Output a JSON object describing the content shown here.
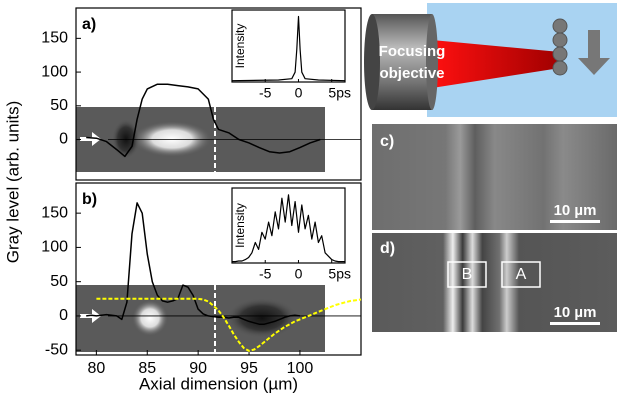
{
  "chart_data": [
    {
      "type": "line",
      "panel_label": "a)",
      "ylabel": "Gray level (arb. units)",
      "x": [
        79,
        80,
        81,
        82,
        82.8,
        83.5,
        84,
        84.5,
        85,
        86,
        87,
        88,
        89,
        90,
        91,
        91.5,
        92,
        93,
        94,
        95,
        96,
        97,
        98,
        99,
        100,
        101,
        102
      ],
      "series": [
        {
          "color": "#000000",
          "values": [
            3,
            2,
            -3,
            -15,
            -25,
            -10,
            30,
            60,
            75,
            82,
            82,
            80,
            78,
            75,
            60,
            30,
            15,
            10,
            0,
            -5,
            -12,
            -18,
            -20,
            -18,
            -12,
            -5,
            0
          ]
        }
      ],
      "xlim": [
        78,
        106
      ],
      "ylim": [
        -60,
        195
      ],
      "yticks": [
        0,
        50,
        100,
        150
      ]
    },
    {
      "type": "line",
      "panel_label": "b)",
      "xlabel": "Axial dimension (µm)",
      "x": [
        79,
        79.5,
        80,
        80.5,
        81,
        81.5,
        82,
        82.5,
        83,
        83.5,
        84,
        84.5,
        85,
        85.5,
        86,
        86.5,
        87,
        87.5,
        88,
        88.5,
        89,
        89.5,
        90,
        90.5,
        91,
        91.5,
        92,
        92.5,
        93,
        93.5,
        94,
        94.5,
        95,
        95.5,
        96,
        96.5,
        97,
        97.5,
        98,
        98.5,
        99,
        99.5,
        100,
        100.5,
        101,
        101.5,
        102,
        102.5,
        103,
        103.5,
        104,
        104.5,
        105,
        105.5,
        106
      ],
      "series": [
        {
          "color": "#000000",
          "values": [
            0,
            1,
            0,
            1,
            2,
            1,
            0,
            -5,
            20,
            120,
            165,
            150,
            90,
            50,
            30,
            22,
            20,
            22,
            25,
            45,
            42,
            30,
            10,
            3,
            0,
            -1,
            -2,
            -2,
            -3,
            -2,
            -2,
            -5,
            -8,
            -10,
            -12,
            -12,
            -10,
            -8,
            -5,
            -2,
            0,
            1,
            0,
            null,
            null,
            null,
            null,
            null,
            null,
            null,
            null,
            null,
            null,
            null,
            null
          ]
        },
        {
          "color": "#ffff00",
          "line_style": "dashed",
          "values": [
            null,
            null,
            25,
            25,
            25,
            25,
            25,
            25,
            25,
            25,
            25,
            25,
            25,
            25,
            25,
            25,
            25,
            25,
            25,
            25,
            25,
            25,
            25,
            24,
            21,
            15,
            8,
            -2,
            -14,
            -27,
            -38,
            -47,
            -51,
            -49,
            -44,
            -38,
            -32,
            -26,
            -21,
            -16,
            -12,
            -8,
            -5,
            -2,
            1,
            4,
            7,
            10,
            13,
            16,
            18,
            20,
            22,
            23,
            24
          ]
        }
      ],
      "xlim": [
        78,
        106
      ],
      "xticks": [
        80,
        85,
        90,
        95,
        100
      ],
      "ylim": [
        -57,
        194
      ],
      "yticks": [
        -50,
        0,
        50,
        100,
        150
      ]
    },
    {
      "type": "line",
      "ylabel": "Intensity",
      "x": [
        -10,
        -3,
        -1,
        -0.5,
        -0.25,
        0,
        0.25,
        0.5,
        1,
        3,
        7
      ],
      "series": [
        {
          "color": "#000000",
          "values": [
            0.02,
            0.03,
            0.05,
            0.15,
            0.5,
            1,
            0.5,
            0.15,
            0.05,
            0.03,
            0.02
          ]
        }
      ],
      "xlim": [
        -10,
        7
      ],
      "xticks": [
        -5,
        0,
        {
          "value": 5,
          "label": "5ps"
        }
      ],
      "ylim": [
        0,
        1.1
      ]
    },
    {
      "type": "line",
      "ylabel": "Intensity",
      "x": [
        -10,
        -9.5,
        -9,
        -8.5,
        -8,
        -7.5,
        -7,
        -6.5,
        -6,
        -5.5,
        -5,
        -4.5,
        -4,
        -3.5,
        -3,
        -2.5,
        -2,
        -1.5,
        -1,
        -0.5,
        0,
        0.5,
        1,
        1.5,
        2,
        2.5,
        3,
        3.5,
        4,
        4.5,
        5,
        5.5,
        6,
        6.5,
        7
      ],
      "series": [
        {
          "color": "#000000",
          "values": [
            0.02,
            0.02,
            0.03,
            0.03,
            0.05,
            0.08,
            0.15,
            0.3,
            0.2,
            0.45,
            0.35,
            0.6,
            0.4,
            0.75,
            0.5,
            0.95,
            0.6,
            1.0,
            0.55,
            0.9,
            0.45,
            0.85,
            0.5,
            0.7,
            0.35,
            0.6,
            0.3,
            0.4,
            0.15,
            0.1,
            0.05,
            0.03,
            0.02,
            0.02,
            0.02
          ]
        }
      ],
      "xlim": [
        -10,
        7
      ],
      "xticks": [
        -5,
        0,
        {
          "value": 5,
          "label": "5ps"
        }
      ],
      "ylim": [
        0,
        1.1
      ]
    }
  ],
  "schematic": {
    "label_lines": [
      "Focusing",
      "objective"
    ]
  },
  "images": [
    {
      "label": "c)",
      "scale_bar": "10 µm"
    },
    {
      "label": "d)",
      "scale_bar": "10 µm",
      "regions": [
        "B",
        "A"
      ]
    }
  ]
}
